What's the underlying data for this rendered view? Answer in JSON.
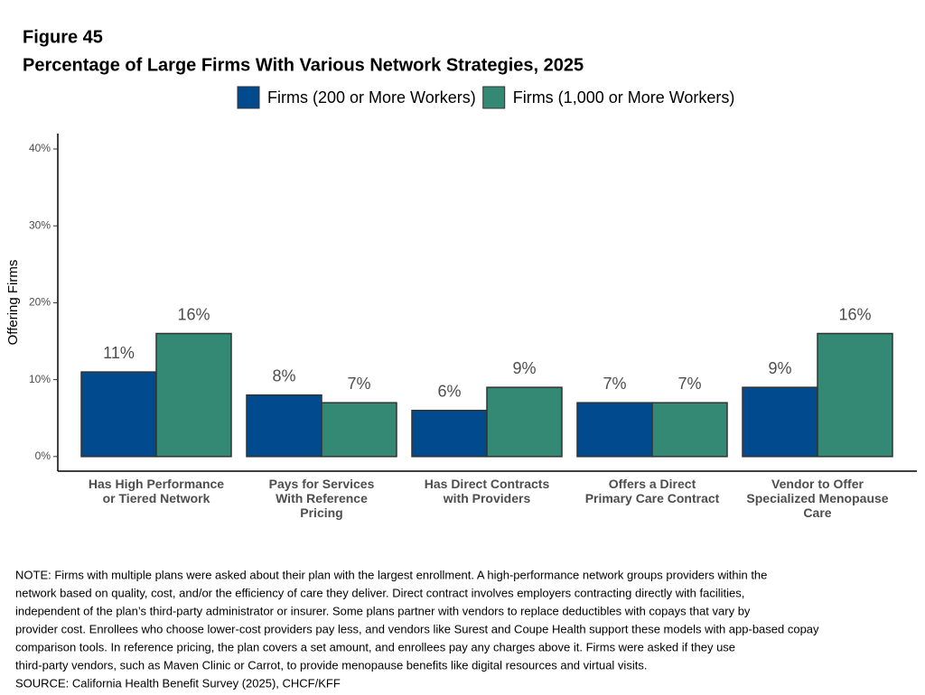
{
  "chart_data": {
    "type": "bar",
    "title": "Figure 45",
    "subtitle": "Percentage of Large Firms With Various Network Strategies, 2025",
    "y_label": "Offering Firms",
    "categories": [
      "Has High Performance\nor Tiered Network",
      "Pays for Services\nWith Reference\nPricing",
      "Has Direct Contracts\nwith Providers",
      "Offers a Direct\nPrimary Care Contract",
      "Vendor to Offer\nSpecialized Menopause\nCare"
    ],
    "series": [
      {
        "name": "Firms (200 or More Workers)",
        "color": "#004a8d",
        "values": [
          11,
          8,
          6,
          7,
          9
        ],
        "value_labels": [
          "11%",
          "8%",
          "6%",
          "7%",
          "9%"
        ]
      },
      {
        "name": "Firms (1,000 or More Workers)",
        "color": "#338974",
        "values": [
          16,
          7,
          9,
          7,
          16
        ],
        "value_labels": [
          "16%",
          "7%",
          "9%",
          "7%",
          "16%"
        ]
      }
    ],
    "ylim": [
      -1.9,
      42
    ],
    "yticks": [
      {
        "value": 0,
        "label": "0%"
      },
      {
        "value": 10,
        "label": "10%"
      },
      {
        "value": 20,
        "label": "20%"
      },
      {
        "value": 30,
        "label": "30%"
      },
      {
        "value": 40,
        "label": "40%"
      }
    ],
    "legend_position": "top",
    "note": [
      "NOTE: Firms with multiple plans were asked about their plan with the largest enrollment.  A high-performance network groups providers within the",
      "network based on quality, cost, and/or the efficiency of care they deliver.  Direct contract involves employers contracting directly with facilities,",
      "independent of the plan’s third-party administrator or insurer.  Some plans partner with vendors to replace deductibles with copays that vary by",
      "provider cost. Enrollees who choose lower-cost providers pay less, and vendors like Surest and Coupe Health support these models with app-based copay",
      "comparison tools. In reference pricing, the plan covers a set amount, and enrollees pay any charges above it. Firms were asked if they use",
      "third-party vendors, such as Maven Clinic or Carrot, to provide menopause benefits like digital resources and virtual visits."
    ],
    "source": "SOURCE: California Health Benefit Survey (2025), CHCF/KFF"
  }
}
